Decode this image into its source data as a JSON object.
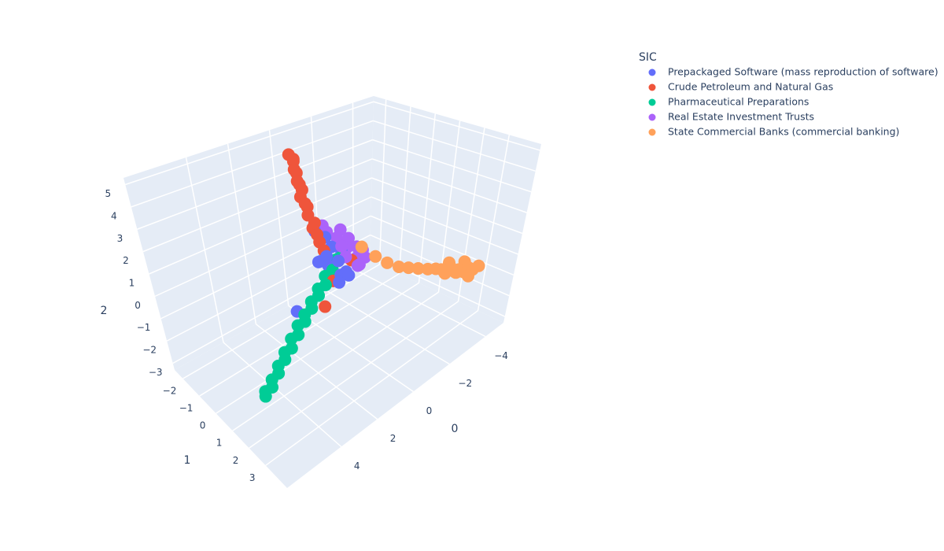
{
  "chart_data": {
    "type": "scatter3d",
    "legend_title": "SIC",
    "xaxis_title": "0",
    "yaxis_title": "1",
    "zaxis_title": "2",
    "xlim": [
      -5,
      7
    ],
    "ylim": [
      -2.5,
      4.3
    ],
    "zlim": [
      -3.3,
      5.3
    ],
    "xticks": [
      {
        "value": -4,
        "label": "−4"
      },
      {
        "value": -2,
        "label": "−2"
      },
      0,
      2,
      4
    ],
    "yticks": [
      {
        "value": -2,
        "label": "−2"
      },
      {
        "value": -1,
        "label": "−1"
      },
      0,
      1,
      2,
      3
    ],
    "zticks": [
      {
        "value": -3,
        "label": "−3"
      },
      {
        "value": -2,
        "label": "−2"
      },
      {
        "value": -1,
        "label": "−1"
      },
      0,
      1,
      2,
      3,
      4,
      5
    ],
    "grid": true,
    "series": [
      {
        "name": "Prepackaged Software (mass reproduction of software)",
        "color": "#636efa",
        "x": [
          0.2,
          0.0,
          -0.2,
          0.4,
          0.1,
          -0.4,
          0.3,
          -0.1,
          0.5,
          -0.6,
          0.2,
          0.0,
          -0.3,
          0.6,
          1.9
        ],
        "y": [
          0.0,
          0.3,
          -0.2,
          -0.3,
          0.5,
          0.1,
          0.6,
          -0.4,
          0.2,
          -0.1,
          -0.6,
          0.8,
          0.4,
          0.0,
          -0.1
        ],
        "z": [
          0.2,
          0.5,
          0.8,
          0.3,
          0.0,
          0.6,
          -0.2,
          1.2,
          0.9,
          0.3,
          1.5,
          0.1,
          -0.1,
          0.6,
          -1.2
        ]
      },
      {
        "name": "Crude Petroleum and Natural Gas",
        "color": "#ef553b",
        "x": [
          0.2,
          0.3,
          0.3,
          0.4,
          0.4,
          0.5,
          0.4,
          0.5,
          0.6,
          0.5,
          0.5,
          0.6,
          0.5,
          0.6,
          0.5,
          0.6,
          0.7,
          -0.8,
          0.3,
          1.5
        ],
        "y": [
          -0.2,
          -0.3,
          -0.4,
          -0.5,
          -0.4,
          -0.6,
          -0.7,
          -0.7,
          -0.8,
          -0.8,
          -0.9,
          -0.9,
          -1.0,
          -1.0,
          -1.1,
          -1.0,
          -1.1,
          0.2,
          0.3,
          1.0
        ],
        "z": [
          0.8,
          1.2,
          1.5,
          1.8,
          2.1,
          2.4,
          2.7,
          2.9,
          3.2,
          3.5,
          3.7,
          3.9,
          4.2,
          4.4,
          4.7,
          4.9,
          5.1,
          0.1,
          -0.3,
          -0.5
        ]
      },
      {
        "name": "Pharmaceutical Preparations",
        "color": "#00cc96",
        "x": [
          -0.4,
          -0.2,
          0.1,
          0.4,
          0.6,
          0.9,
          1.1,
          1.4,
          1.6,
          1.9,
          2.1,
          2.4,
          2.6,
          2.9,
          3.1,
          3.4,
          3.6,
          3.9,
          4.1,
          4.4,
          4.6,
          4.9,
          5.0
        ],
        "y": [
          0.1,
          0.0,
          0.1,
          0.0,
          0.2,
          0.1,
          0.3,
          0.2,
          0.4,
          0.3,
          0.5,
          0.4,
          0.6,
          0.5,
          0.7,
          0.6,
          0.8,
          0.7,
          0.9,
          0.8,
          1.0,
          0.9,
          1.0
        ],
        "z": [
          0.4,
          0.3,
          0.0,
          -0.2,
          -0.4,
          -0.5,
          -0.6,
          -0.8,
          -0.9,
          -1.1,
          -1.2,
          -1.3,
          -1.5,
          -1.6,
          -1.8,
          -1.9,
          -2.0,
          -2.2,
          -2.3,
          -2.5,
          -2.6,
          -2.7,
          -2.8
        ]
      },
      {
        "name": "Real Estate Investment Trusts",
        "color": "#ab63fa",
        "x": [
          -0.5,
          -0.8,
          -1.0,
          -0.6,
          -1.2,
          -0.9,
          -0.3,
          -1.4,
          -0.7,
          -1.1,
          -0.4,
          -1.3,
          -0.2,
          -0.9
        ],
        "y": [
          0.2,
          0.0,
          0.3,
          -0.3,
          0.1,
          0.5,
          -0.5,
          0.2,
          0.6,
          -0.2,
          0.1,
          0.4,
          -0.6,
          -0.4
        ],
        "z": [
          0.4,
          0.6,
          0.2,
          1.0,
          0.5,
          0.0,
          1.3,
          0.3,
          0.1,
          0.8,
          0.9,
          0.1,
          1.6,
          1.2
        ]
      },
      {
        "name": "State Commercial Banks (commercial banking)",
        "color": "#ffa15a",
        "x": [
          -0.9,
          -1.3,
          -1.6,
          -1.9,
          -2.2,
          -2.5,
          -2.8,
          -3.0,
          -3.2,
          -3.4,
          -3.5,
          -3.6,
          -3.7,
          -3.8,
          -3.9,
          -4.0,
          -4.0,
          -4.1,
          -4.2,
          -4.3,
          -3.6,
          -3.8,
          -4.1,
          -3.3,
          -3.9
        ],
        "y": [
          0.6,
          0.9,
          1.2,
          1.5,
          1.7,
          1.9,
          2.1,
          2.3,
          2.4,
          2.5,
          2.6,
          2.7,
          2.8,
          2.7,
          2.9,
          3.0,
          2.8,
          3.1,
          2.9,
          3.2,
          2.4,
          2.6,
          2.7,
          2.5,
          3.1
        ],
        "z": [
          0.9,
          0.4,
          0.1,
          -0.1,
          -0.2,
          -0.3,
          -0.4,
          -0.4,
          -0.5,
          -0.6,
          -0.5,
          -0.7,
          -0.6,
          -0.8,
          -0.7,
          -0.6,
          -0.9,
          -0.7,
          -0.8,
          -0.6,
          -0.4,
          -0.9,
          -0.5,
          -0.7,
          -0.9
        ]
      }
    ]
  }
}
